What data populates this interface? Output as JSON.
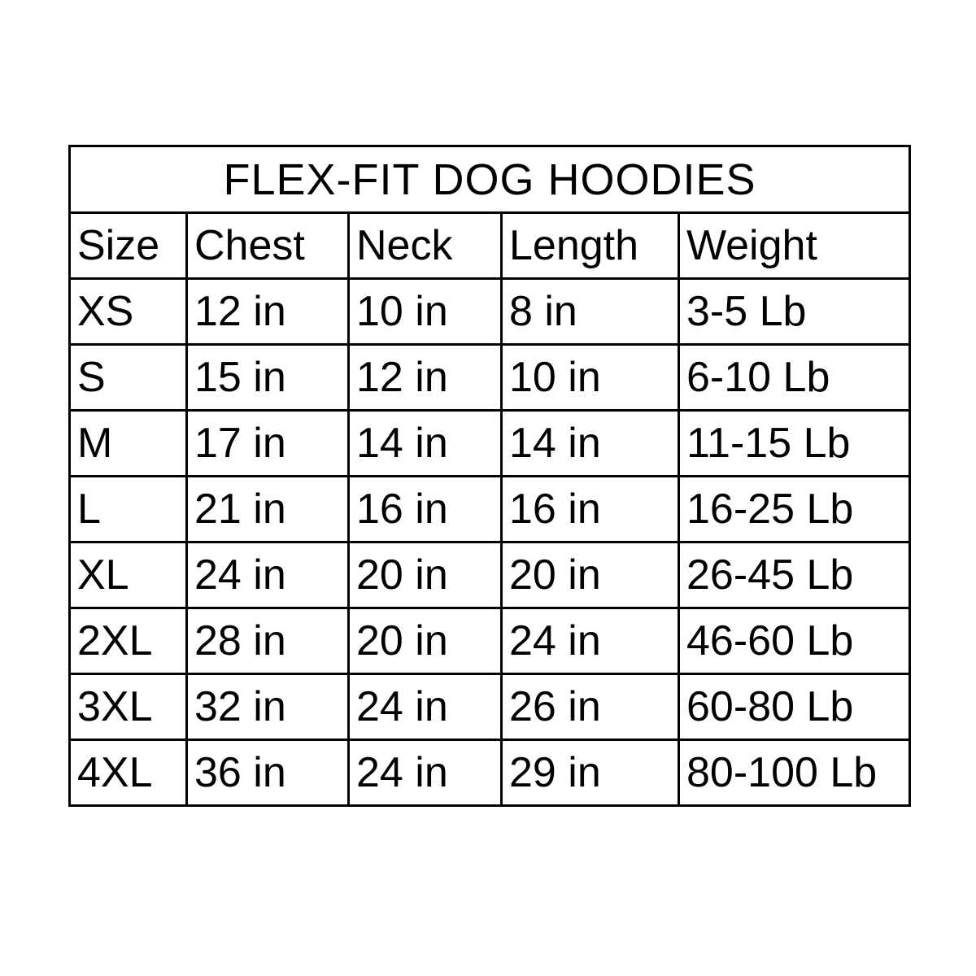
{
  "title": "FLEX-FIT DOG HOODIES",
  "headers": [
    "Size",
    "Chest",
    "Neck",
    "Length",
    "Weight"
  ],
  "rows": [
    [
      "XS",
      "12 in",
      "10 in",
      "8 in",
      "3-5 Lb"
    ],
    [
      "S",
      "15 in",
      "12 in",
      "10 in",
      "6-10 Lb"
    ],
    [
      "M",
      "17 in",
      "14 in",
      "14 in",
      "11-15 Lb"
    ],
    [
      "L",
      "21 in",
      "16 in",
      "16 in",
      "16-25 Lb"
    ],
    [
      "XL",
      "24 in",
      "20 in",
      "20 in",
      "26-45 Lb"
    ],
    [
      "2XL",
      "28 in",
      "20 in",
      "24 in",
      "46-60 Lb"
    ],
    [
      "3XL",
      "32 in",
      "24 in",
      "26 in",
      "60-80 Lb"
    ],
    [
      "4XL",
      "36 in",
      "24 in",
      "29 in",
      "80-100 Lb"
    ]
  ]
}
